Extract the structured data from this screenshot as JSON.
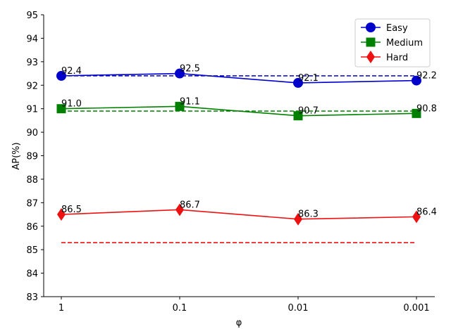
{
  "chart_data": {
    "type": "line",
    "xlabel": "φ",
    "ylabel": "AP(%)",
    "categories": [
      "1",
      "0.1",
      "0.01",
      "0.001"
    ],
    "ylim": [
      83,
      95
    ],
    "yticks": [
      83,
      84,
      85,
      86,
      87,
      88,
      89,
      90,
      91,
      92,
      93,
      94,
      95
    ],
    "grid": false,
    "legend_position": "top-right",
    "series": [
      {
        "name": "Easy",
        "color": "#0000cc",
        "marker": "circle",
        "values": [
          92.4,
          92.5,
          92.1,
          92.2
        ],
        "labels": [
          "92.4",
          "92.5",
          "92.1",
          "92.2"
        ],
        "baseline": 92.4
      },
      {
        "name": "Medium",
        "color": "#008000",
        "marker": "square",
        "values": [
          91.0,
          91.1,
          90.7,
          90.8
        ],
        "labels": [
          "91.0",
          "91.1",
          "90.7",
          "90.8"
        ],
        "baseline": 90.9
      },
      {
        "name": "Hard",
        "color": "#ee1111",
        "marker": "diamond",
        "values": [
          86.5,
          86.7,
          86.3,
          86.4
        ],
        "labels": [
          "86.5",
          "86.7",
          "86.3",
          "86.4"
        ],
        "baseline": 85.3
      }
    ]
  }
}
